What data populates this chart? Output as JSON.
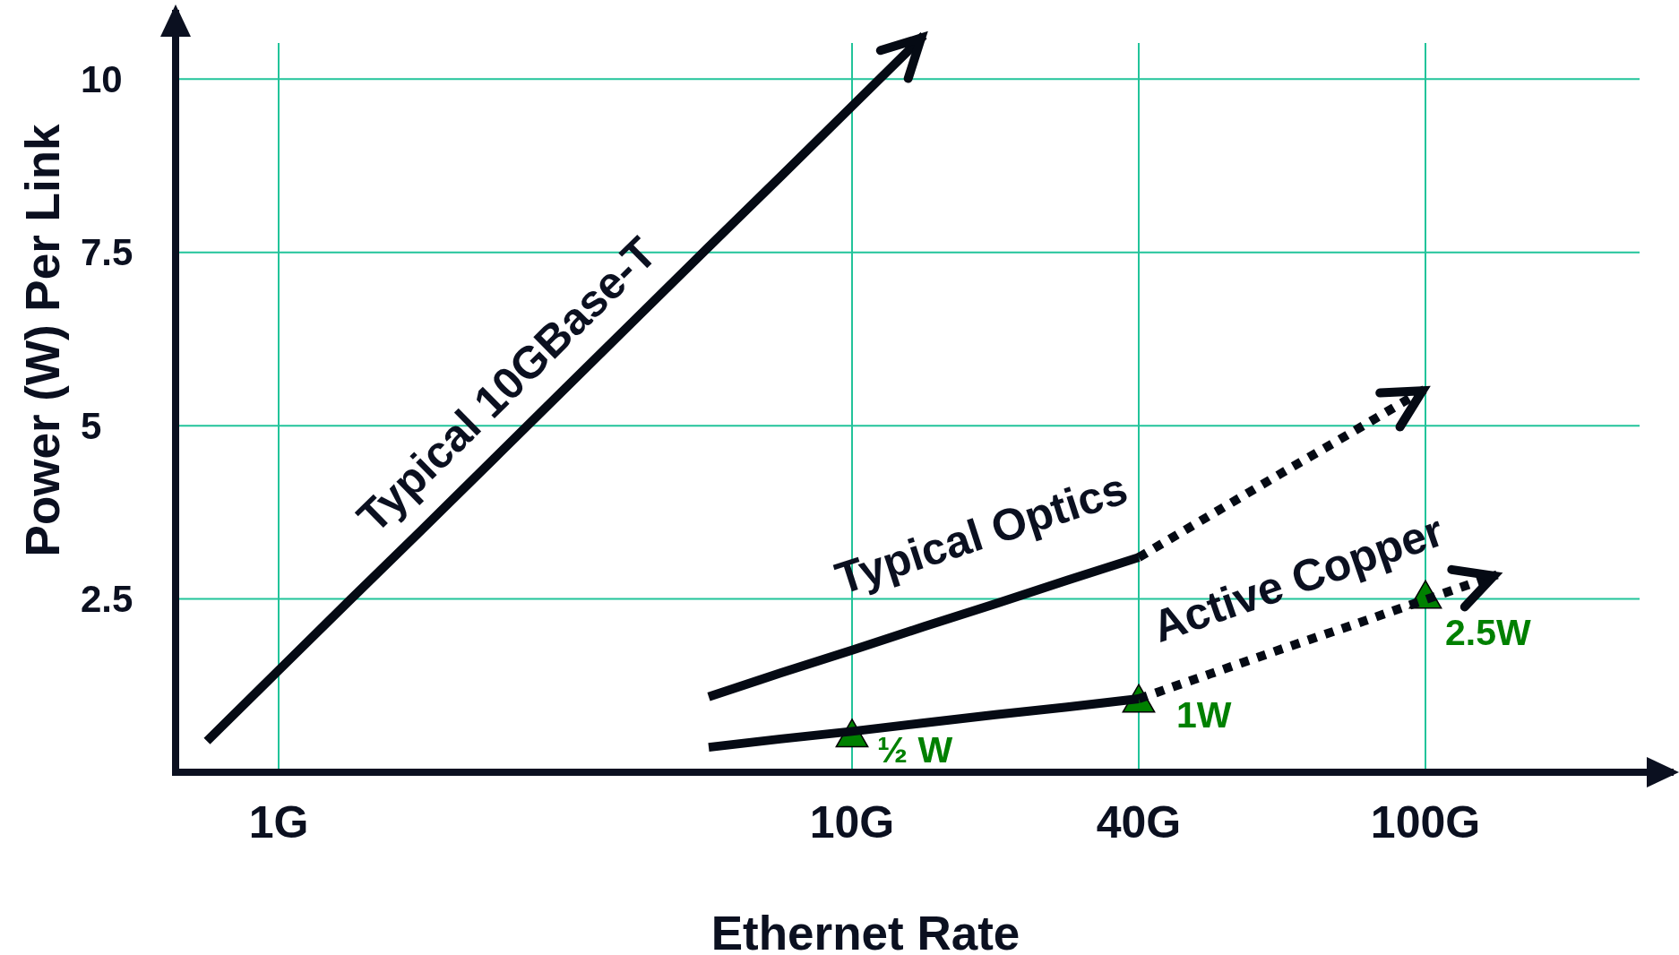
{
  "chart_data": {
    "type": "line",
    "xlabel": "Ethernet Rate",
    "ylabel": "Power (W) Per Link",
    "categories": [
      null,
      "1G",
      null,
      null,
      null,
      null,
      null,
      null,
      null,
      "10G",
      null,
      null,
      null,
      "40G",
      null,
      null,
      null,
      "100G",
      null
    ],
    "ylim": [
      0,
      11
    ],
    "yticks": [
      2.5,
      5,
      7.5,
      10
    ],
    "grid": true,
    "series": [
      {
        "name": "Typical 10GBase-T",
        "color": "#050a14",
        "line_style": "solid",
        "values": [
          0.45,
          1.47,
          2.49,
          3.5,
          4.52,
          5.54,
          6.56,
          7.58,
          8.59,
          9.61,
          10.63,
          null,
          null,
          null,
          null,
          null,
          null,
          null,
          null
        ]
      },
      {
        "name": "Typical Optics",
        "color": "#050a14",
        "line_style": "solid",
        "values": [
          null,
          null,
          null,
          null,
          null,
          null,
          null,
          1.09,
          1.43,
          1.76,
          2.1,
          2.43,
          2.77,
          3.1,
          null,
          null,
          null,
          null,
          null
        ]
      },
      {
        "color": "#050a14",
        "line_style": "dotted",
        "values": [
          null,
          null,
          null,
          null,
          null,
          null,
          null,
          null,
          null,
          null,
          null,
          null,
          null,
          3.1,
          3.71,
          4.32,
          4.92,
          5.53,
          null
        ]
      },
      {
        "color": "#050a14",
        "line_style": "solid",
        "values": [
          null,
          null,
          null,
          null,
          null,
          null,
          null,
          0.36,
          0.48,
          0.59,
          0.71,
          0.83,
          0.94,
          1.06,
          null,
          null,
          null,
          null,
          null
        ]
      },
      {
        "name": "Active Copper",
        "color": "#050a14",
        "line_style": "dotted",
        "values": [
          null,
          null,
          null,
          null,
          null,
          null,
          null,
          null,
          null,
          null,
          null,
          null,
          null,
          1.06,
          1.42,
          1.78,
          2.13,
          2.49,
          2.85
        ]
      },
      {
        "type": "scatter",
        "color": "#008000",
        "marker": "triangle",
        "values": [
          null,
          null,
          null,
          null,
          null,
          null,
          null,
          null,
          null,
          0.5,
          null,
          null,
          null,
          1,
          null,
          null,
          null,
          2.5,
          null
        ],
        "value_labels": [
          null,
          null,
          null,
          null,
          null,
          null,
          null,
          null,
          null,
          "½ W",
          null,
          null,
          null,
          "1W",
          null,
          null,
          null,
          "2.5W",
          null
        ]
      }
    ]
  }
}
